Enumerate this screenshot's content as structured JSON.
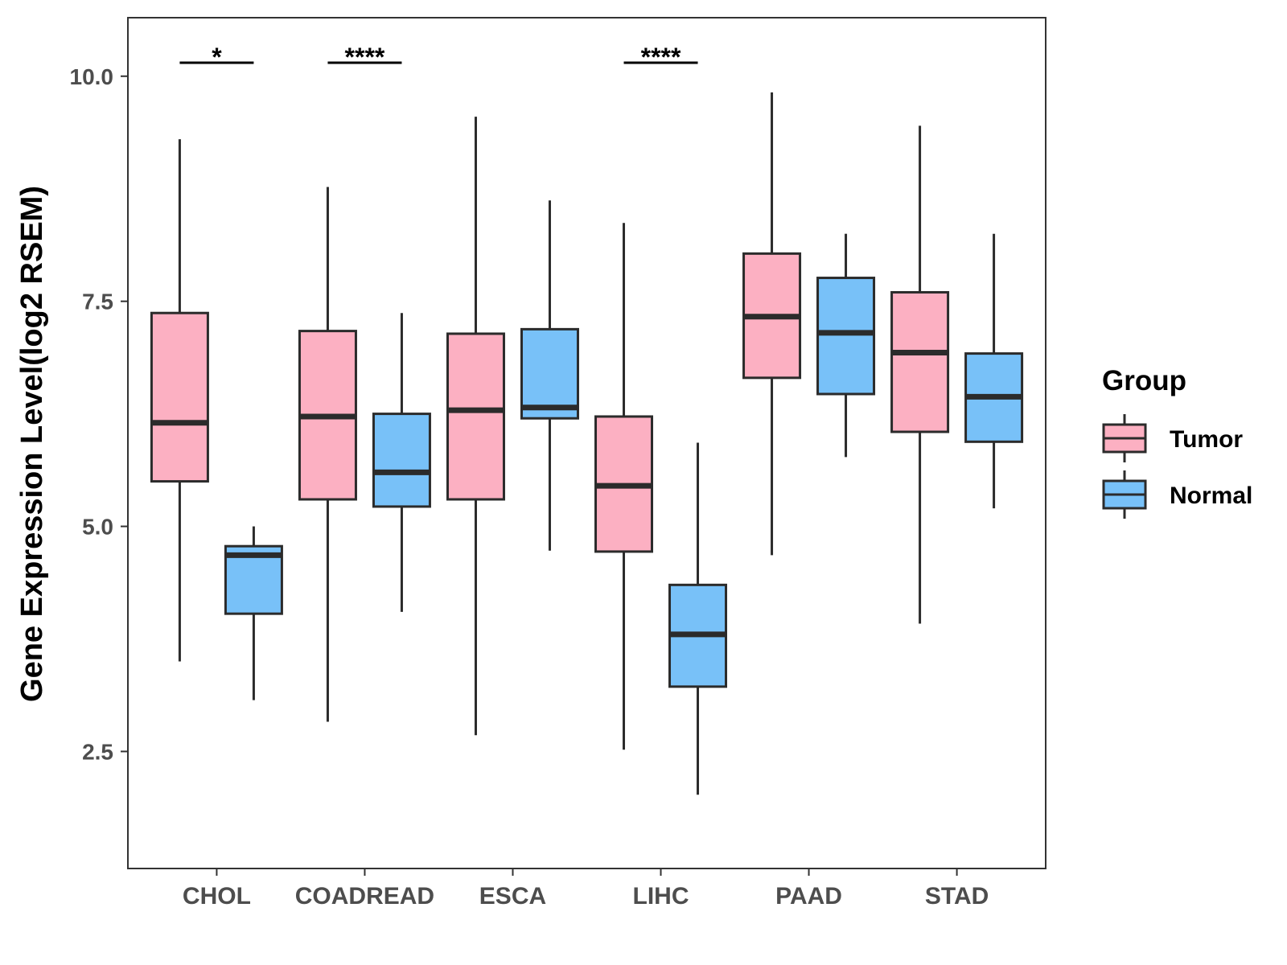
{
  "chart_data": {
    "type": "boxplot",
    "title": "",
    "xlabel": "",
    "ylabel": "Gene Expression Level(log2 RSEM)",
    "ylim": [
      1.2,
      10.65
    ],
    "yticks": [
      2.5,
      5.0,
      7.5,
      10.0
    ],
    "ytick_labels": [
      "2.5",
      "5.0",
      "7.5",
      "10.0"
    ],
    "categories": [
      "CHOL",
      "COADREAD",
      "ESCA",
      "LIHC",
      "PAAD",
      "STAD"
    ],
    "legend": {
      "title": "Group",
      "position": "right",
      "entries": [
        "Tumor",
        "Normal"
      ]
    },
    "series": [
      {
        "name": "Tumor",
        "color": "#fcb0c2",
        "boxes": [
          {
            "min": 3.5,
            "q1": 5.5,
            "median": 6.15,
            "q3": 7.37,
            "max": 9.3
          },
          {
            "min": 2.83,
            "q1": 5.3,
            "median": 6.22,
            "q3": 7.17,
            "max": 8.77
          },
          {
            "min": 2.68,
            "q1": 5.3,
            "median": 6.29,
            "q3": 7.14,
            "max": 9.55
          },
          {
            "min": 2.52,
            "q1": 4.72,
            "median": 5.45,
            "q3": 6.22,
            "max": 8.37
          },
          {
            "min": 4.68,
            "q1": 6.65,
            "median": 7.33,
            "q3": 8.03,
            "max": 9.82
          },
          {
            "min": 3.92,
            "q1": 6.05,
            "median": 6.93,
            "q3": 7.6,
            "max": 9.45
          }
        ]
      },
      {
        "name": "Normal",
        "color": "#78c1f8",
        "boxes": [
          {
            "min": 3.07,
            "q1": 4.03,
            "median": 4.68,
            "q3": 4.78,
            "max": 5.0
          },
          {
            "min": 4.05,
            "q1": 5.22,
            "median": 5.6,
            "q3": 6.25,
            "max": 7.37
          },
          {
            "min": 4.73,
            "q1": 6.2,
            "median": 6.32,
            "q3": 7.19,
            "max": 8.62
          },
          {
            "min": 2.02,
            "q1": 3.22,
            "median": 3.8,
            "q3": 4.35,
            "max": 5.93
          },
          {
            "min": 5.77,
            "q1": 6.47,
            "median": 7.15,
            "q3": 7.76,
            "max": 8.25
          },
          {
            "min": 5.2,
            "q1": 5.94,
            "median": 6.44,
            "q3": 6.92,
            "max": 8.25
          }
        ]
      }
    ],
    "significance": [
      {
        "category": "CHOL",
        "label": "*"
      },
      {
        "category": "COADREAD",
        "label": "****"
      },
      {
        "category": "LIHC",
        "label": "****"
      }
    ],
    "significance_y": 10.15
  }
}
